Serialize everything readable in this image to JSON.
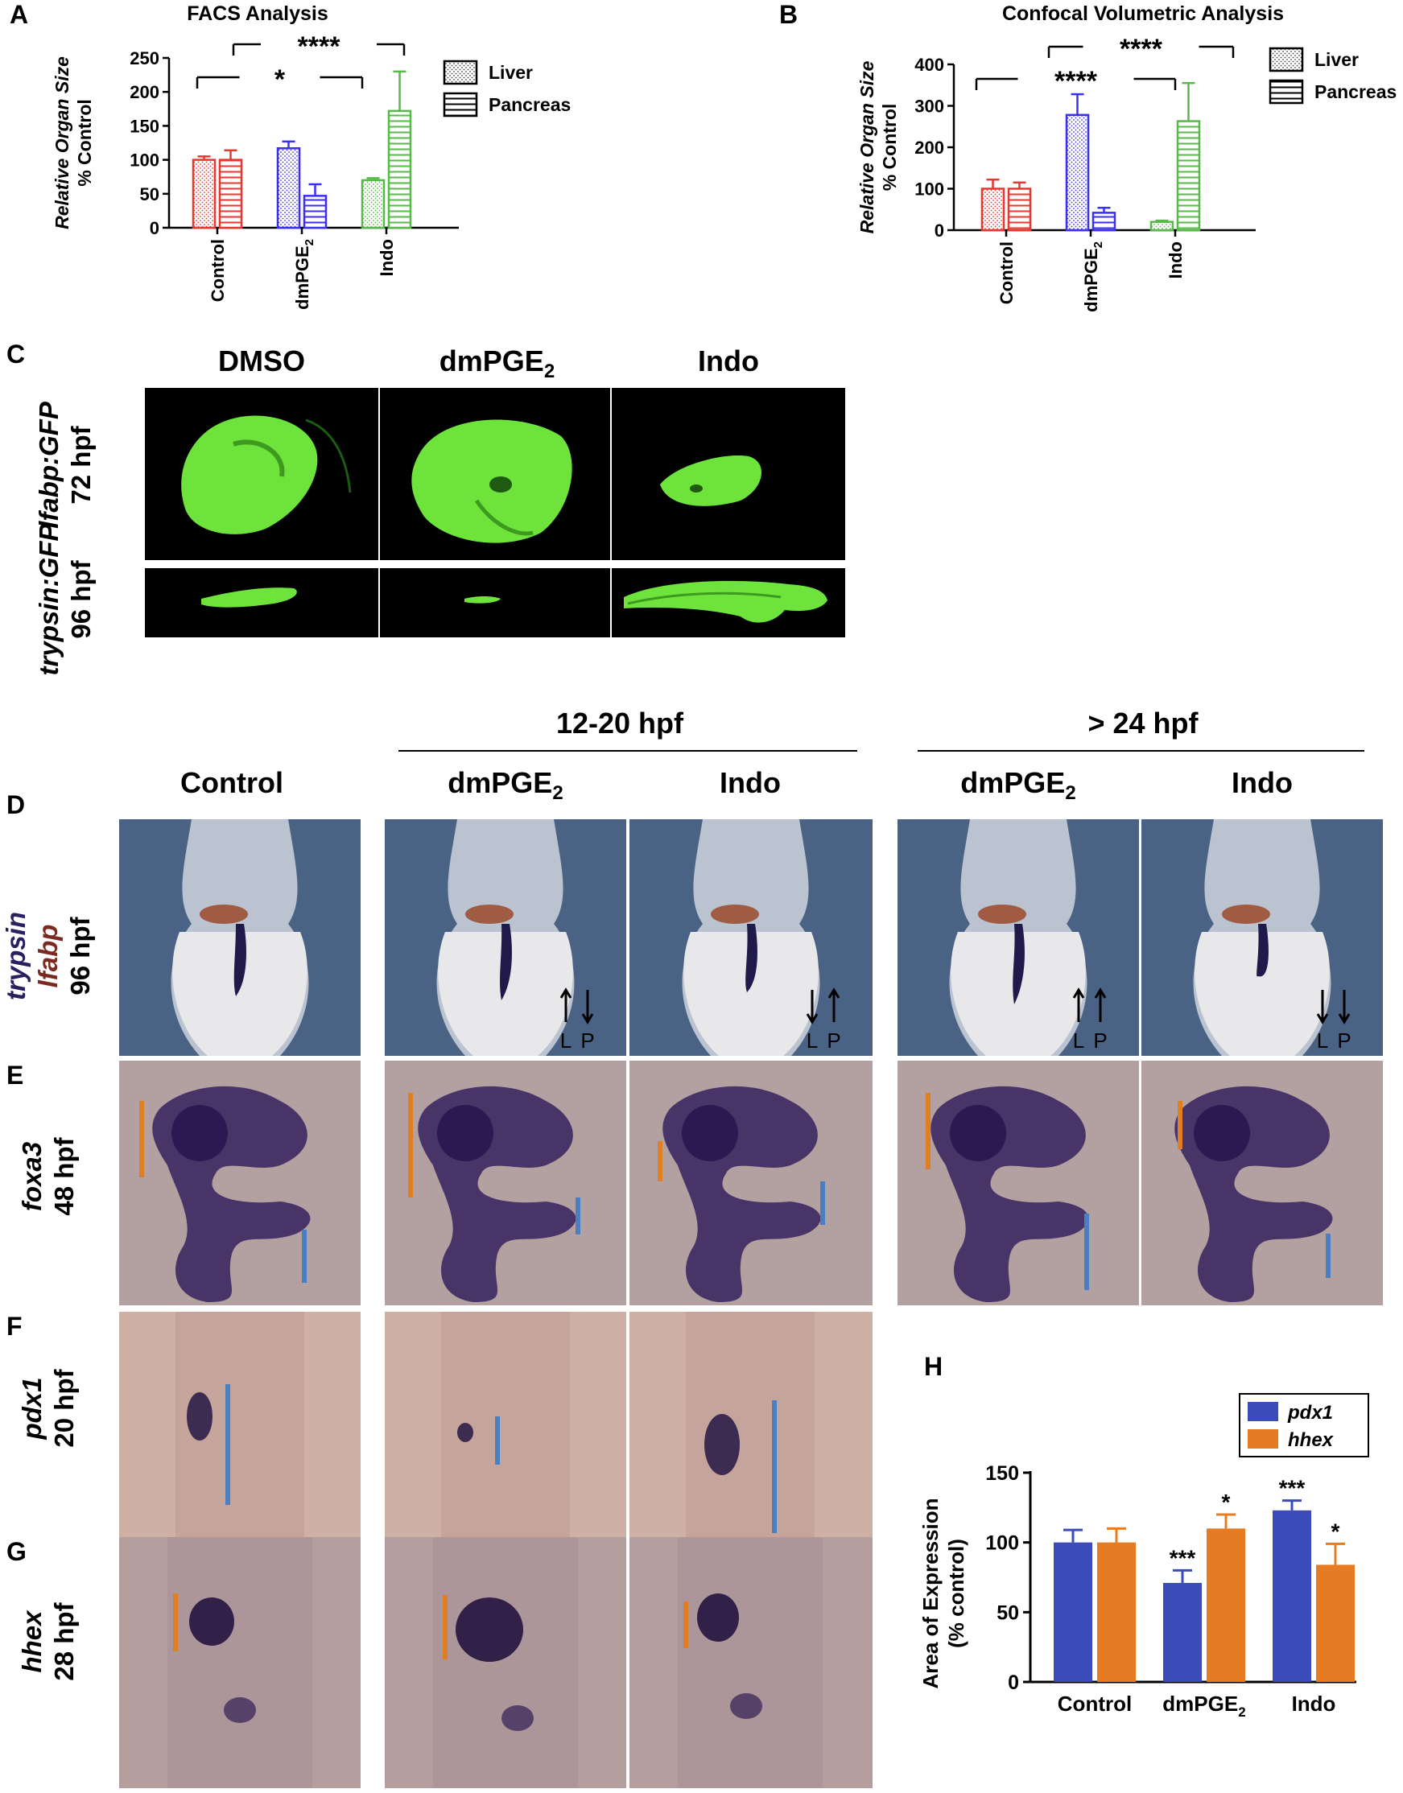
{
  "panels": {
    "A": {
      "letter": "A",
      "chart_data": {
        "type": "bar",
        "title": "FACS Analysis",
        "ylabel_line1": "Relative Organ Size",
        "ylabel_line2": "% Control",
        "categories": [
          "Control",
          "dmPGE",
          "Indo"
        ],
        "category_subscripts": [
          "",
          "2",
          ""
        ],
        "ylim": [
          0,
          250
        ],
        "yticks": [
          0,
          50,
          100,
          150,
          200,
          250
        ],
        "series": [
          {
            "name": "Liver",
            "pattern": "dots",
            "values": [
              100,
              117,
              70
            ],
            "errors": [
              5,
              10,
              3
            ]
          },
          {
            "name": "Pancreas",
            "pattern": "hlines",
            "values": [
              100,
              47,
              172
            ],
            "errors": [
              14,
              17,
              58
            ]
          }
        ],
        "colors": [
          "#e8372f",
          "#3b2ff5",
          "#57b947"
        ],
        "annotations": [
          {
            "from": 0,
            "to": 2,
            "label": "*"
          },
          {
            "from": 0,
            "to": 2,
            "label": "****"
          }
        ],
        "legend": "right"
      }
    },
    "B": {
      "letter": "B",
      "chart_data": {
        "type": "bar",
        "title": "Confocal Volumetric Analysis",
        "ylabel_line1": "Relative Organ Size",
        "ylabel_line2": "% Control",
        "categories": [
          "Control",
          "dmPGE",
          "Indo"
        ],
        "category_subscripts": [
          "",
          "2",
          ""
        ],
        "ylim": [
          0,
          400
        ],
        "yticks": [
          0,
          100,
          200,
          300,
          400
        ],
        "series": [
          {
            "name": "Liver",
            "pattern": "dots",
            "values": [
              100,
              278,
              20
            ],
            "errors": [
              22,
              50,
              3
            ]
          },
          {
            "name": "Pancreas",
            "pattern": "hlines",
            "values": [
              100,
              42,
              263
            ],
            "errors": [
              15,
              12,
              92
            ]
          }
        ],
        "colors": [
          "#e8372f",
          "#3b2ff5",
          "#57b947"
        ],
        "annotations": [
          {
            "from": 0,
            "to": 2,
            "label": "****"
          },
          {
            "from": 0,
            "to": 2,
            "label": "****"
          }
        ],
        "legend": "right"
      }
    },
    "C": {
      "letter": "C",
      "columns": [
        {
          "text": "DMSO",
          "sub": ""
        },
        {
          "text": "dmPGE",
          "sub": "2"
        },
        {
          "text": "Indo",
          "sub": ""
        }
      ],
      "rows": [
        {
          "gene": "lfabp:GFP",
          "stage": "72 hpf"
        },
        {
          "gene": "trypsin:GFP",
          "stage": "96 hpf"
        }
      ]
    },
    "D_to_G": {
      "group_headers": [
        "12-20 hpf",
        "> 24 hpf"
      ],
      "columns": [
        {
          "text": "Control",
          "sub": ""
        },
        {
          "text": "dmPGE",
          "sub": "2"
        },
        {
          "text": "Indo",
          "sub": ""
        },
        {
          "text": "dmPGE",
          "sub": "2"
        },
        {
          "text": "Indo",
          "sub": ""
        }
      ],
      "D": {
        "letter": "D",
        "gene1": "trypsin",
        "gene2": "lfabp",
        "stage": "96 hpf",
        "arrow_labels": [
          "L",
          "P"
        ]
      },
      "E": {
        "letter": "E",
        "gene": "foxa3",
        "stage": "48 hpf"
      },
      "F": {
        "letter": "F",
        "gene": "pdx1",
        "stage": "20 hpf"
      },
      "G": {
        "letter": "G",
        "gene": "hhex",
        "stage": "28 hpf"
      }
    },
    "H": {
      "letter": "H",
      "chart_data": {
        "type": "bar",
        "title": "",
        "ylabel_line1": "Area of Expression",
        "ylabel_line2": "(% control)",
        "categories": [
          "Control",
          "dmPGE",
          "Indo"
        ],
        "category_subscripts": [
          "",
          "2",
          ""
        ],
        "ylim": [
          0,
          150
        ],
        "yticks": [
          0,
          50,
          100,
          150
        ],
        "series": [
          {
            "name": "pdx1",
            "color": "#3b4bb8",
            "values": [
              100,
              71,
              123
            ],
            "errors": [
              9,
              9,
              7
            ],
            "stars": [
              "",
              "***",
              "***"
            ]
          },
          {
            "name": "hhex",
            "color": "#e57c23",
            "values": [
              100,
              110,
              84
            ],
            "errors": [
              10,
              10,
              15
            ],
            "stars": [
              "",
              "*",
              "*"
            ]
          }
        ],
        "legend": "top-right"
      }
    }
  }
}
